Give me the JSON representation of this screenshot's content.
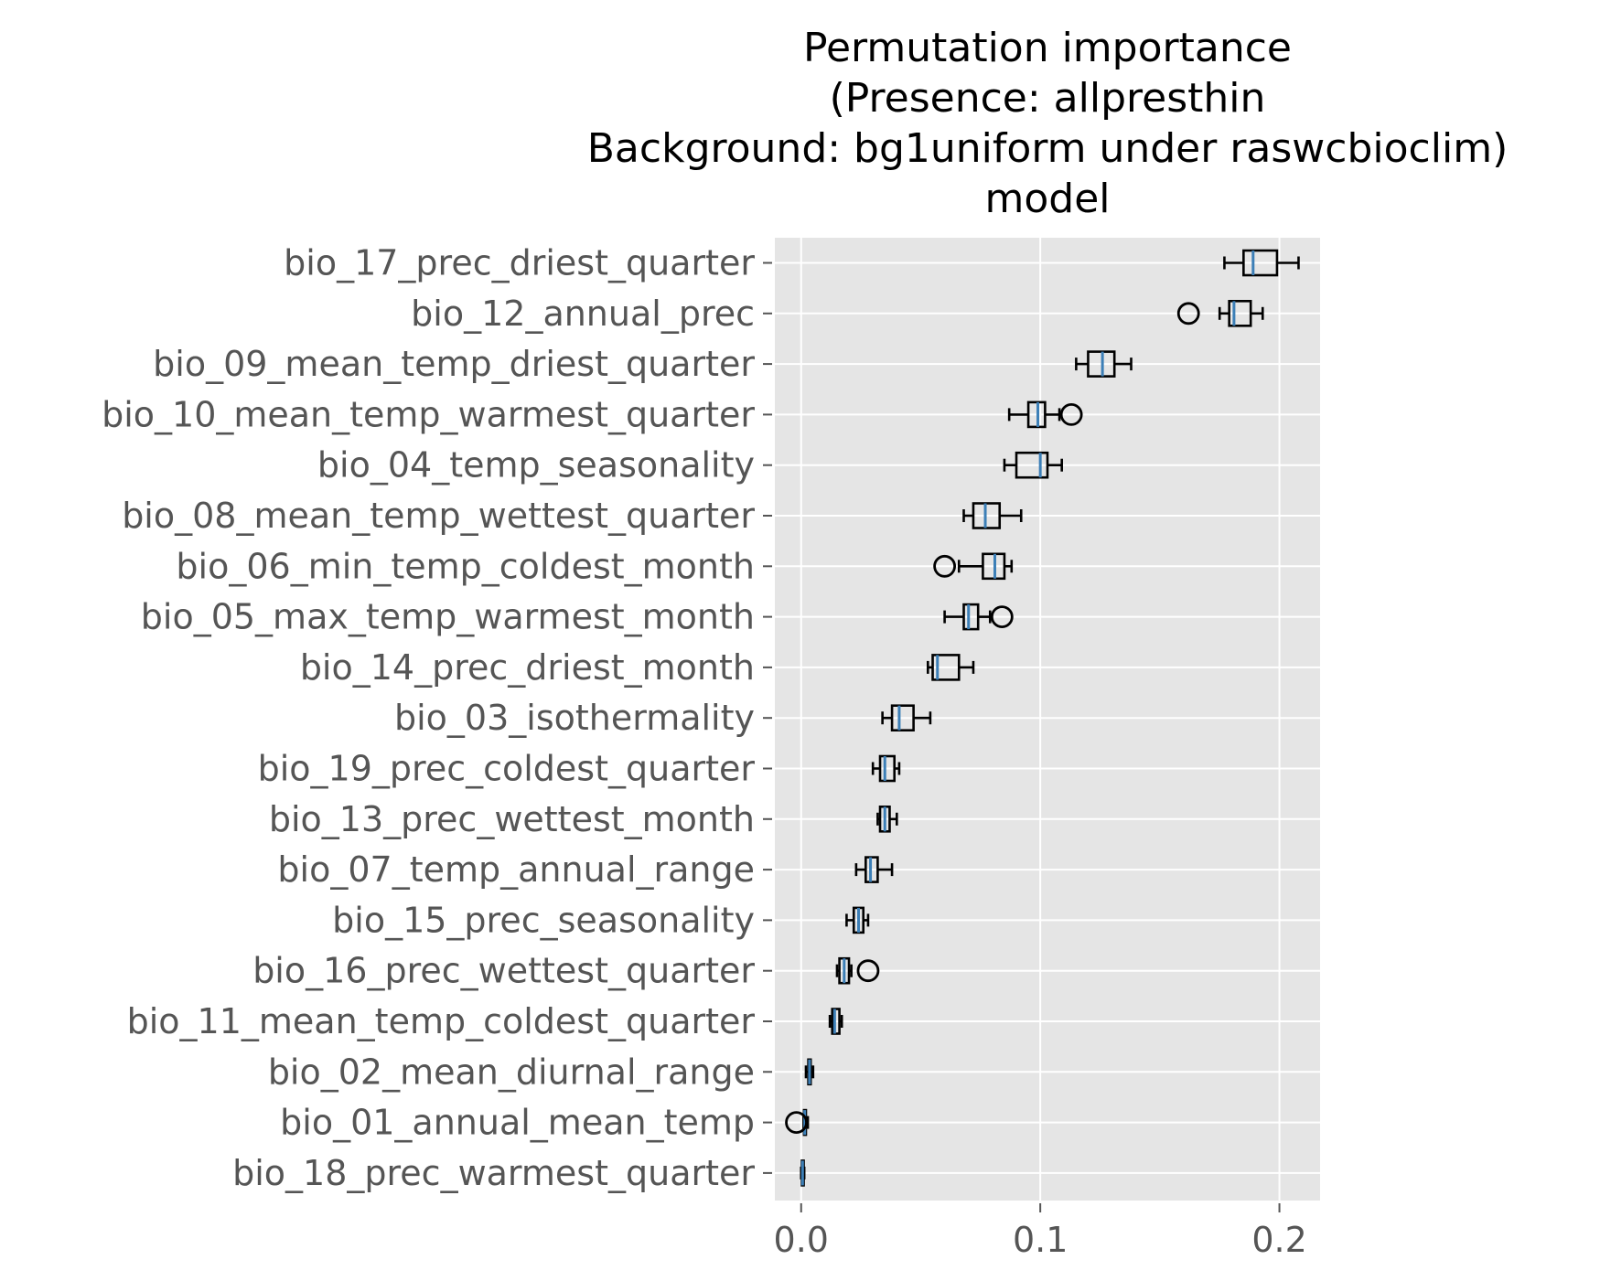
{
  "chart_data": {
    "type": "boxplot",
    "orientation": "horizontal",
    "title_lines": [
      "Permutation importance",
      "(Presence: allpresthin",
      "Background: bg1uniform under raswcbioclim)",
      "model"
    ],
    "xlabel": "",
    "ylabel": "",
    "xlim": [
      -0.011,
      0.217
    ],
    "xticks": [
      0.0,
      0.1,
      0.2
    ],
    "xtick_labels": [
      "0.0",
      "0.1",
      "0.2"
    ],
    "grid": true,
    "legend": "none",
    "colors": {
      "plot_background": "#e5e5e5",
      "grid": "#ffffff",
      "box_edge": "#000000",
      "median": "#3c7fb7",
      "tick_text": "#555555"
    },
    "series": [
      {
        "label": "bio_17_prec_driest_quarter",
        "whislo": 0.177,
        "q1": 0.185,
        "med": 0.189,
        "q3": 0.199,
        "whishi": 0.208,
        "fliers": []
      },
      {
        "label": "bio_12_annual_prec",
        "whislo": 0.175,
        "q1": 0.179,
        "med": 0.181,
        "q3": 0.188,
        "whishi": 0.193,
        "fliers": [
          0.162
        ]
      },
      {
        "label": "bio_09_mean_temp_driest_quarter",
        "whislo": 0.115,
        "q1": 0.12,
        "med": 0.126,
        "q3": 0.131,
        "whishi": 0.138,
        "fliers": []
      },
      {
        "label": "bio_10_mean_temp_warmest_quarter",
        "whislo": 0.087,
        "q1": 0.095,
        "med": 0.099,
        "q3": 0.102,
        "whishi": 0.108,
        "fliers": [
          0.113
        ]
      },
      {
        "label": "bio_04_temp_seasonality",
        "whislo": 0.085,
        "q1": 0.09,
        "med": 0.1,
        "q3": 0.103,
        "whishi": 0.109,
        "fliers": []
      },
      {
        "label": "bio_08_mean_temp_wettest_quarter",
        "whislo": 0.068,
        "q1": 0.072,
        "med": 0.077,
        "q3": 0.083,
        "whishi": 0.092,
        "fliers": []
      },
      {
        "label": "bio_06_min_temp_coldest_month",
        "whislo": 0.066,
        "q1": 0.076,
        "med": 0.081,
        "q3": 0.085,
        "whishi": 0.088,
        "fliers": [
          0.06
        ]
      },
      {
        "label": "bio_05_max_temp_warmest_month",
        "whislo": 0.06,
        "q1": 0.068,
        "med": 0.07,
        "q3": 0.074,
        "whishi": 0.079,
        "fliers": [
          0.084
        ]
      },
      {
        "label": "bio_14_prec_driest_month",
        "whislo": 0.053,
        "q1": 0.055,
        "med": 0.057,
        "q3": 0.066,
        "whishi": 0.072,
        "fliers": []
      },
      {
        "label": "bio_03_isothermality",
        "whislo": 0.034,
        "q1": 0.038,
        "med": 0.041,
        "q3": 0.047,
        "whishi": 0.054,
        "fliers": []
      },
      {
        "label": "bio_19_prec_coldest_quarter",
        "whislo": 0.03,
        "q1": 0.033,
        "med": 0.035,
        "q3": 0.039,
        "whishi": 0.041,
        "fliers": []
      },
      {
        "label": "bio_13_prec_wettest_month",
        "whislo": 0.032,
        "q1": 0.033,
        "med": 0.035,
        "q3": 0.037,
        "whishi": 0.04,
        "fliers": []
      },
      {
        "label": "bio_07_temp_annual_range",
        "whislo": 0.023,
        "q1": 0.027,
        "med": 0.029,
        "q3": 0.032,
        "whishi": 0.038,
        "fliers": []
      },
      {
        "label": "bio_15_prec_seasonality",
        "whislo": 0.019,
        "q1": 0.022,
        "med": 0.024,
        "q3": 0.026,
        "whishi": 0.028,
        "fliers": []
      },
      {
        "label": "bio_16_prec_wettest_quarter",
        "whislo": 0.015,
        "q1": 0.016,
        "med": 0.018,
        "q3": 0.02,
        "whishi": 0.021,
        "fliers": [
          0.028
        ]
      },
      {
        "label": "bio_11_mean_temp_coldest_quarter",
        "whislo": 0.012,
        "q1": 0.013,
        "med": 0.014,
        "q3": 0.016,
        "whishi": 0.017,
        "fliers": []
      },
      {
        "label": "bio_02_mean_diurnal_range",
        "whislo": 0.002,
        "q1": 0.003,
        "med": 0.0035,
        "q3": 0.004,
        "whishi": 0.005,
        "fliers": []
      },
      {
        "label": "bio_01_annual_mean_temp",
        "whislo": 0.001,
        "q1": 0.0012,
        "med": 0.0015,
        "q3": 0.002,
        "whishi": 0.0028,
        "fliers": [
          -0.002
        ]
      },
      {
        "label": "bio_18_prec_warmest_quarter",
        "whislo": 0.0,
        "q1": 0.0003,
        "med": 0.0006,
        "q3": 0.001,
        "whishi": 0.0013,
        "fliers": []
      }
    ]
  }
}
